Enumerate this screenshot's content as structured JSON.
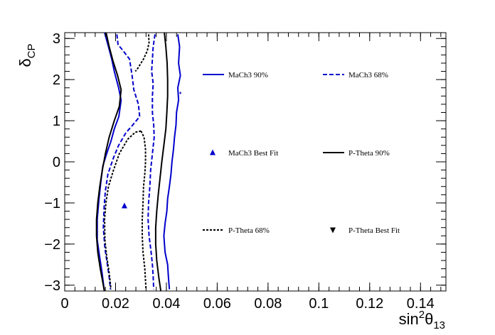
{
  "chart_data": {
    "type": "line",
    "title": "",
    "xlabel": {
      "main": "sin",
      "sup": "2",
      "mid": "θ",
      "sub": "13"
    },
    "ylabel": {
      "main": "δ",
      "sub": "CP"
    },
    "xlim": [
      0,
      0.15
    ],
    "ylim": [
      -3.1416,
      3.1416
    ],
    "x_ticks": [
      0,
      0.02,
      0.04,
      0.06,
      0.08,
      0.1,
      0.12,
      0.14
    ],
    "x_tick_labels": [
      "0",
      "0.02",
      "0.04",
      "0.06",
      "0.08",
      "0.1",
      "0.12",
      "0.14"
    ],
    "y_ticks": [
      -3,
      -2,
      -1,
      0,
      1,
      2,
      3
    ],
    "y_tick_labels": [
      "−3",
      "−2",
      "−1",
      "0",
      "1",
      "2",
      "3"
    ],
    "grid": false,
    "legend_position": "inside-right",
    "legend": [
      {
        "label": "MaCh3 90%",
        "series": "mach3_90"
      },
      {
        "label": "MaCh3 68%",
        "series": "mach3_68"
      },
      {
        "label": "MaCh3 Best Fit",
        "series": "mach3_bf"
      },
      {
        "label": "P-Theta 90%",
        "series": "ptheta_90"
      },
      {
        "label": "P-Theta 68%",
        "series": "ptheta_68"
      },
      {
        "label": "P-Theta Best Fit",
        "series": "ptheta_bf"
      }
    ],
    "series": [
      {
        "id": "mach3_90",
        "color": "#0000cc",
        "dash": "solid",
        "left": [
          [
            0.0157,
            3.14
          ],
          [
            0.0172,
            2.8
          ],
          [
            0.0185,
            2.5
          ],
          [
            0.0195,
            2.2
          ],
          [
            0.0212,
            1.8
          ],
          [
            0.0222,
            1.5
          ],
          [
            0.0213,
            1.1
          ],
          [
            0.0195,
            0.8
          ],
          [
            0.0182,
            0.5
          ],
          [
            0.0165,
            0.2
          ],
          [
            0.015,
            -0.1
          ],
          [
            0.0142,
            -0.5
          ],
          [
            0.0135,
            -0.9
          ],
          [
            0.0128,
            -1.4
          ],
          [
            0.0128,
            -1.9
          ],
          [
            0.0137,
            -2.3
          ],
          [
            0.0147,
            -2.7
          ],
          [
            0.0155,
            -3.1
          ]
        ],
        "right": [
          [
            0.0445,
            3.1
          ],
          [
            0.0452,
            2.8
          ],
          [
            0.0448,
            2.4
          ],
          [
            0.0455,
            2.1
          ],
          [
            0.0445,
            1.8
          ],
          [
            0.0448,
            1.5
          ],
          [
            0.044,
            1.2
          ],
          [
            0.0438,
            0.9
          ],
          [
            0.0432,
            0.6
          ],
          [
            0.0428,
            0.3
          ],
          [
            0.0422,
            0.0
          ],
          [
            0.0418,
            -0.3
          ],
          [
            0.0412,
            -0.6
          ],
          [
            0.0405,
            -0.9
          ],
          [
            0.0402,
            -1.2
          ],
          [
            0.0395,
            -1.5
          ],
          [
            0.039,
            -1.8
          ],
          [
            0.0395,
            -2.2
          ],
          [
            0.0405,
            -2.5
          ],
          [
            0.0408,
            -2.8
          ],
          [
            0.0412,
            -3.1
          ]
        ],
        "extra": [
          [
            0.0455,
            1.65
          ],
          [
            0.0455,
            1.7
          ]
        ]
      },
      {
        "id": "mach3_68",
        "color": "#0000cc",
        "dash": "dashed",
        "left": [
          [
            0.0205,
            3.1
          ],
          [
            0.021,
            2.85
          ],
          [
            0.023,
            2.7
          ],
          [
            0.0255,
            2.5
          ],
          [
            0.0265,
            2.1
          ],
          [
            0.0272,
            1.75
          ],
          [
            0.029,
            1.4
          ],
          [
            0.0295,
            1.1
          ],
          [
            0.0268,
            0.9
          ],
          [
            0.024,
            0.7
          ],
          [
            0.0212,
            0.4
          ],
          [
            0.0192,
            0.1
          ],
          [
            0.017,
            -0.3
          ],
          [
            0.016,
            -0.7
          ],
          [
            0.0155,
            -1.1
          ],
          [
            0.0152,
            -1.6
          ],
          [
            0.0158,
            -2.1
          ],
          [
            0.0168,
            -2.5
          ],
          [
            0.0175,
            -2.8
          ],
          [
            0.018,
            -3.1
          ]
        ],
        "right": [
          [
            0.0355,
            3.1
          ],
          [
            0.0348,
            2.8
          ],
          [
            0.0345,
            2.5
          ],
          [
            0.0342,
            2.2
          ],
          [
            0.0348,
            1.9
          ],
          [
            0.0345,
            1.6
          ],
          [
            0.0345,
            1.2
          ],
          [
            0.035,
            0.9
          ],
          [
            0.0352,
            0.6
          ],
          [
            0.0345,
            0.2
          ],
          [
            0.0338,
            -0.2
          ],
          [
            0.0335,
            -0.6
          ],
          [
            0.033,
            -1.0
          ],
          [
            0.0328,
            -1.4
          ],
          [
            0.0332,
            -1.8
          ],
          [
            0.034,
            -2.2
          ],
          [
            0.0345,
            -2.5
          ],
          [
            0.0348,
            -2.8
          ],
          [
            0.035,
            -3.1
          ]
        ]
      },
      {
        "id": "ptheta_90",
        "color": "#000000",
        "dash": "solid",
        "left": [
          [
            0.0163,
            3.14
          ],
          [
            0.0175,
            2.8
          ],
          [
            0.019,
            2.45
          ],
          [
            0.0208,
            2.1
          ],
          [
            0.0222,
            1.75
          ],
          [
            0.0215,
            1.35
          ],
          [
            0.0195,
            1.0
          ],
          [
            0.0175,
            0.6
          ],
          [
            0.016,
            0.2
          ],
          [
            0.0148,
            -0.2
          ],
          [
            0.0138,
            -0.6
          ],
          [
            0.013,
            -1.0
          ],
          [
            0.0125,
            -1.4
          ],
          [
            0.0125,
            -1.8
          ],
          [
            0.013,
            -2.2
          ],
          [
            0.014,
            -2.6
          ],
          [
            0.0152,
            -3.0
          ],
          [
            0.0156,
            -3.14
          ]
        ],
        "right": [
          [
            0.0392,
            3.14
          ],
          [
            0.0398,
            2.8
          ],
          [
            0.0403,
            2.4
          ],
          [
            0.0405,
            2.0
          ],
          [
            0.0405,
            1.6
          ],
          [
            0.0402,
            1.2
          ],
          [
            0.0398,
            0.8
          ],
          [
            0.039,
            0.4
          ],
          [
            0.0382,
            0.0
          ],
          [
            0.0375,
            -0.4
          ],
          [
            0.0368,
            -0.8
          ],
          [
            0.0362,
            -1.2
          ],
          [
            0.0358,
            -1.6
          ],
          [
            0.0358,
            -2.0
          ],
          [
            0.0362,
            -2.4
          ],
          [
            0.037,
            -2.8
          ],
          [
            0.0378,
            -3.14
          ]
        ]
      },
      {
        "id": "ptheta_68",
        "color": "#000000",
        "dash": "dotted",
        "top_arc": [
          [
            0.033,
            3.1
          ],
          [
            0.0332,
            2.9
          ],
          [
            0.0325,
            2.7
          ],
          [
            0.031,
            2.5
          ],
          [
            0.0295,
            2.35
          ],
          [
            0.0285,
            2.25
          ],
          [
            0.0278,
            2.2
          ]
        ],
        "left": [
          [
            0.03,
            0.75
          ],
          [
            0.0278,
            0.72
          ],
          [
            0.0248,
            0.55
          ],
          [
            0.0215,
            0.2
          ],
          [
            0.0192,
            -0.2
          ],
          [
            0.0172,
            -0.6
          ],
          [
            0.0162,
            -1.0
          ],
          [
            0.0157,
            -1.4
          ],
          [
            0.0158,
            -1.9
          ],
          [
            0.0165,
            -2.3
          ],
          [
            0.0175,
            -2.7
          ],
          [
            0.0182,
            -3.1
          ]
        ],
        "right": [
          [
            0.03,
            0.75
          ],
          [
            0.0312,
            0.6
          ],
          [
            0.0318,
            0.3
          ],
          [
            0.0318,
            0.0
          ],
          [
            0.0315,
            -0.3
          ],
          [
            0.031,
            -0.6
          ],
          [
            0.0308,
            -1.0
          ],
          [
            0.0305,
            -1.4
          ],
          [
            0.0305,
            -1.8
          ],
          [
            0.0308,
            -2.2
          ],
          [
            0.0315,
            -2.6
          ],
          [
            0.032,
            -3.1
          ]
        ]
      }
    ],
    "markers": [
      {
        "id": "mach3_bf",
        "shape": "triangle-up",
        "color": "#0000cc",
        "x": 0.0235,
        "y": -1.07
      }
    ]
  }
}
